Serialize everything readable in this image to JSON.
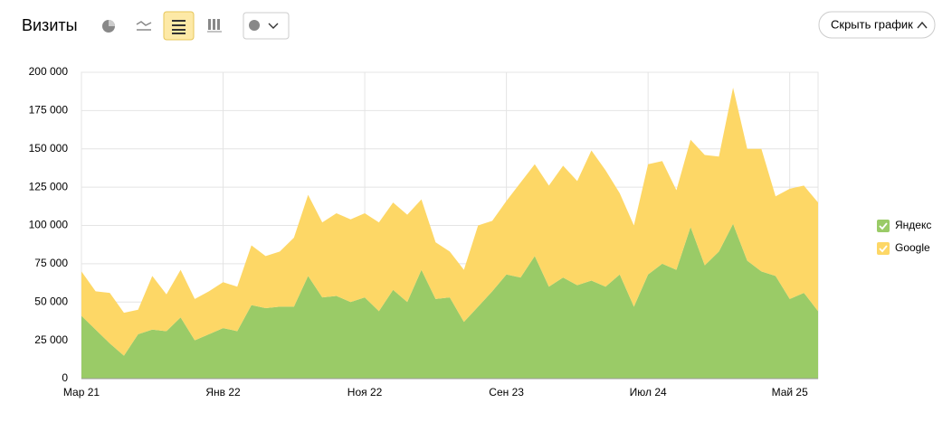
{
  "header": {
    "title": "Визиты",
    "hide_button": "Скрыть график"
  },
  "chart_data": {
    "type": "stacked_area",
    "categories": [
      "Мар 21",
      null,
      null,
      null,
      null,
      null,
      null,
      null,
      null,
      null,
      "Янв 22",
      null,
      null,
      null,
      null,
      null,
      null,
      null,
      null,
      null,
      "Ноя 22",
      null,
      null,
      null,
      null,
      null,
      null,
      null,
      null,
      null,
      "Сен 23",
      null,
      null,
      null,
      null,
      null,
      null,
      null,
      null,
      null,
      "Июл 24",
      null,
      null,
      null,
      null,
      null,
      null,
      null,
      null,
      null,
      "Май 25",
      null,
      null
    ],
    "series": [
      {
        "name": "Яндекс",
        "color": "#9acb67",
        "values": [
          41000,
          32000,
          23000,
          15000,
          29000,
          32000,
          31000,
          40000,
          25000,
          29000,
          33000,
          31000,
          48000,
          46000,
          47000,
          47000,
          67000,
          53000,
          54000,
          50000,
          53000,
          44000,
          58000,
          50000,
          71000,
          52000,
          53000,
          37000,
          47000,
          57000,
          68000,
          66000,
          80000,
          60000,
          66000,
          61000,
          64000,
          60000,
          68000,
          47000,
          68000,
          75000,
          71000,
          99000,
          74000,
          83000,
          101000,
          77000,
          70000,
          67000,
          52000,
          56000,
          44000
        ]
      },
      {
        "name": "Google",
        "color": "#fdd766",
        "values": [
          29000,
          25000,
          33000,
          28000,
          16000,
          35000,
          24000,
          31000,
          27000,
          28000,
          30000,
          29000,
          39000,
          34000,
          36000,
          45000,
          53000,
          49000,
          54000,
          54000,
          55000,
          58000,
          57000,
          57000,
          46000,
          37000,
          30000,
          34000,
          53000,
          46000,
          48000,
          62000,
          60000,
          66000,
          73000,
          68000,
          85000,
          76000,
          53000,
          53000,
          72000,
          67000,
          52000,
          57000,
          72000,
          62000,
          89000,
          73000,
          80000,
          52000,
          72000,
          70000,
          71000
        ]
      }
    ],
    "ylim": [
      0,
      200000
    ],
    "yticks": [
      0,
      {
        "value": 25000,
        "label": "25 000"
      },
      {
        "value": 50000,
        "label": "50 000"
      },
      {
        "value": 75000,
        "label": "75 000"
      },
      {
        "value": 100000,
        "label": "100 000"
      },
      {
        "value": 125000,
        "label": "125 000"
      },
      {
        "value": 150000,
        "label": "150 000"
      },
      {
        "value": 175000,
        "label": "175 000"
      },
      {
        "value": 200000,
        "label": "200 000"
      }
    ],
    "grid": true,
    "legend": "right"
  }
}
